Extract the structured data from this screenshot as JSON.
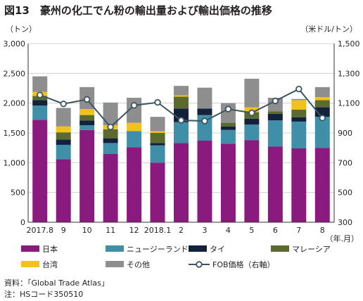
{
  "chart_data": {
    "type": "bar",
    "subtype": "stacked-bar-with-line",
    "title": "図13　豪州の化工でん粉の輸出量および輸出価格の推移",
    "left_axis": {
      "unit_label": "（トン）",
      "ylim": [
        0,
        3000
      ],
      "ticks": [
        0,
        500,
        1000,
        1500,
        2000,
        2500,
        3000
      ],
      "tick_labels": [
        "0",
        "500",
        "1,000",
        "1,500",
        "2,000",
        "2,500",
        "3,000"
      ]
    },
    "right_axis": {
      "unit_label": "（米ドル/トン）",
      "ylim": [
        300,
        1500
      ],
      "ticks": [
        300,
        500,
        700,
        900,
        1100,
        1300,
        1500
      ],
      "tick_labels": [
        "300",
        "500",
        "700",
        "900",
        "1,100",
        "1,300",
        "1,500"
      ]
    },
    "x_unit_label": "（年.月）",
    "categories": [
      "2017.8",
      "9",
      "10",
      "11",
      "12",
      "2018.1",
      "2",
      "3",
      "4",
      "5",
      "6",
      "7",
      "8"
    ],
    "series": [
      {
        "name": "日本",
        "color": "#8b1a7e",
        "values": [
          1720,
          1060,
          1550,
          1150,
          1260,
          1000,
          1330,
          1370,
          1320,
          1380,
          1270,
          1240,
          1250
        ]
      },
      {
        "name": "ニュージーランド",
        "color": "#3f8fa9",
        "values": [
          240,
          240,
          80,
          180,
          270,
          290,
          350,
          430,
          230,
          260,
          440,
          450,
          520
        ]
      },
      {
        "name": "タイ",
        "color": "#14213d",
        "values": [
          90,
          90,
          80,
          80,
          0,
          40,
          230,
          110,
          60,
          100,
          110,
          70,
          160
        ]
      },
      {
        "name": "マレーシア",
        "color": "#5b6b2f",
        "values": [
          70,
          120,
          90,
          150,
          0,
          170,
          200,
          0,
          60,
          110,
          40,
          130,
          120
        ]
      },
      {
        "name": "台湾",
        "color": "#f2c21b",
        "values": [
          70,
          100,
          100,
          70,
          140,
          30,
          20,
          0,
          0,
          80,
          0,
          160,
          50
        ]
      },
      {
        "name": "その他",
        "color": "#8e8e8e",
        "values": [
          260,
          310,
          370,
          380,
          420,
          240,
          160,
          350,
          330,
          480,
          230,
          20,
          170
        ]
      }
    ],
    "line": {
      "name": "FOB価格（右軸）",
      "axis": "right",
      "color": "#3d5562",
      "values": [
        1155,
        1095,
        1125,
        940,
        1085,
        1105,
        985,
        980,
        1060,
        1035,
        1115,
        1195,
        1000
      ]
    },
    "legend_position": "bottom",
    "grid": "horizontal"
  },
  "notes": {
    "source": "資料：「Global Trade Atlas」",
    "note": "注：HSコード350510"
  }
}
